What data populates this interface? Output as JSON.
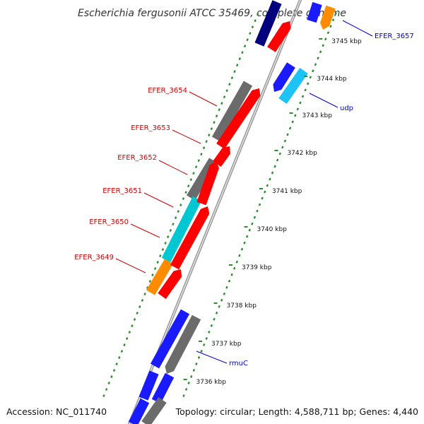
{
  "title": "Escherichia fergusonii ATCC 35469, complete genome",
  "footer": {
    "accession": "Accession: NC_011740",
    "summary": "Topology: circular; Length: 4,588,711 bp; Genes: 4,440"
  },
  "colors": {
    "backbone": "#9a9a9a",
    "tick": "#2e8b2e",
    "cds_forward": "#ff0000",
    "gray": "#6b6b6b",
    "blue": "#1a1aff",
    "cyan": "#00c8d2",
    "orange": "#ff8c00",
    "navy": "#00007f",
    "label_red": "#cc0000",
    "label_blue": "#0000cc"
  },
  "ticks": [
    {
      "label": "3736 kbp"
    },
    {
      "label": "3737 kbp"
    },
    {
      "label": "3738 kbp"
    },
    {
      "label": "3739 kbp"
    },
    {
      "label": "3740 kbp"
    },
    {
      "label": "3741 kbp"
    },
    {
      "label": "3742 kbp"
    },
    {
      "label": "3743 kbp"
    },
    {
      "label": "3744 kbp"
    },
    {
      "label": "3745 kbp"
    }
  ],
  "gene_labels": [
    {
      "text": "EFER_3657",
      "color": "label_blue"
    },
    {
      "text": "udp",
      "color": "label_blue"
    },
    {
      "text": "EFER_3654",
      "color": "label_red"
    },
    {
      "text": "EFER_3653",
      "color": "label_red"
    },
    {
      "text": "EFER_3652",
      "color": "label_red"
    },
    {
      "text": "EFER_3651",
      "color": "label_red"
    },
    {
      "text": "EFER_3650",
      "color": "label_red"
    },
    {
      "text": "EFER_3649",
      "color": "label_red"
    },
    {
      "text": "rmuC",
      "color": "label_blue"
    }
  ]
}
